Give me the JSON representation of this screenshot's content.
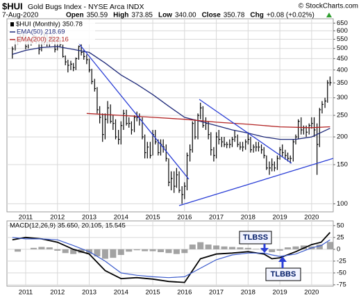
{
  "header": {
    "symbol": "$HUI",
    "name": "Gold Bugs Index - NYSE Arca INDX",
    "credit": "© StockCharts.com",
    "date": "7-Aug-2020",
    "stats": [
      {
        "label": "Open",
        "value": "350.59"
      },
      {
        "label": "High",
        "value": "373.85"
      },
      {
        "label": "Low",
        "value": "340.00"
      },
      {
        "label": "Close",
        "value": "350.78"
      },
      {
        "label": "Chg",
        "value": "+0.08 (+0.02%)"
      }
    ]
  },
  "chart_data": [
    {
      "type": "ohlc",
      "name": "$HUI (Monthly)",
      "color": "#000000",
      "log_scale": true,
      "grid": true,
      "x": [
        2010.58,
        2010.67,
        2010.75,
        2010.83,
        2010.92,
        2011,
        2011.08,
        2011.17,
        2011.25,
        2011.33,
        2011.42,
        2011.5,
        2011.58,
        2011.67,
        2011.75,
        2011.83,
        2011.92,
        2012,
        2012.08,
        2012.17,
        2012.25,
        2012.33,
        2012.42,
        2012.5,
        2012.58,
        2012.67,
        2012.75,
        2012.83,
        2012.92,
        2013,
        2013.08,
        2013.17,
        2013.25,
        2013.33,
        2013.42,
        2013.5,
        2013.58,
        2013.67,
        2013.75,
        2013.83,
        2013.92,
        2014,
        2014.08,
        2014.17,
        2014.25,
        2014.33,
        2014.42,
        2014.5,
        2014.58,
        2014.67,
        2014.75,
        2014.83,
        2014.92,
        2015,
        2015.08,
        2015.17,
        2015.25,
        2015.33,
        2015.42,
        2015.5,
        2015.58,
        2015.67,
        2015.75,
        2015.83,
        2015.92,
        2016,
        2016.08,
        2016.17,
        2016.25,
        2016.33,
        2016.42,
        2016.5,
        2016.58,
        2016.67,
        2016.75,
        2016.83,
        2016.92,
        2017,
        2017.08,
        2017.17,
        2017.25,
        2017.33,
        2017.42,
        2017.5,
        2017.58,
        2017.67,
        2017.75,
        2017.83,
        2017.92,
        2018,
        2018.08,
        2018.17,
        2018.25,
        2018.33,
        2018.42,
        2018.5,
        2018.58,
        2018.67,
        2018.75,
        2018.83,
        2018.92,
        2019,
        2019.08,
        2019.17,
        2019.25,
        2019.33,
        2019.42,
        2019.5,
        2019.58,
        2019.67,
        2019.75,
        2019.83,
        2019.92,
        2020,
        2020.08,
        2020.17,
        2020.25,
        2020.33,
        2020.42,
        2020.5,
        2020.58
      ],
      "high": [
        510,
        545,
        560,
        575,
        580,
        575,
        545,
        555,
        575,
        570,
        535,
        540,
        595,
        580,
        565,
        575,
        555,
        560,
        560,
        520,
        465,
        445,
        440,
        430,
        455,
        515,
        525,
        490,
        470,
        450,
        405,
        365,
        335,
        275,
        255,
        255,
        290,
        280,
        250,
        240,
        215,
        235,
        265,
        265,
        245,
        235,
        250,
        260,
        255,
        245,
        205,
        190,
        190,
        215,
        215,
        195,
        195,
        195,
        185,
        160,
        140,
        140,
        145,
        140,
        120,
        125,
        170,
        185,
        235,
        240,
        255,
        285,
        275,
        245,
        235,
        210,
        180,
        210,
        215,
        200,
        200,
        190,
        195,
        200,
        215,
        205,
        190,
        190,
        195,
        210,
        200,
        185,
        190,
        190,
        185,
        180,
        165,
        155,
        160,
        155,
        165,
        180,
        185,
        175,
        170,
        165,
        195,
        205,
        240,
        245,
        225,
        225,
        230,
        245,
        245,
        230,
        270,
        290,
        300,
        360,
        373.85
      ],
      "low": [
        450,
        490,
        520,
        530,
        545,
        495,
        500,
        515,
        540,
        525,
        470,
        485,
        520,
        510,
        510,
        525,
        480,
        490,
        505,
        455,
        420,
        390,
        400,
        395,
        400,
        445,
        465,
        445,
        425,
        390,
        345,
        320,
        255,
        230,
        190,
        195,
        230,
        230,
        215,
        195,
        185,
        185,
        215,
        225,
        220,
        205,
        210,
        235,
        225,
        195,
        160,
        160,
        160,
        165,
        185,
        165,
        165,
        170,
        155,
        120,
        115,
        112,
        118,
        112,
        100,
        105,
        115,
        155,
        170,
        195,
        195,
        240,
        220,
        215,
        195,
        165,
        155,
        160,
        185,
        180,
        180,
        178,
        178,
        180,
        190,
        180,
        175,
        172,
        175,
        185,
        170,
        170,
        172,
        172,
        168,
        160,
        142,
        135,
        140,
        140,
        142,
        158,
        162,
        158,
        155,
        152,
        155,
        185,
        195,
        205,
        205,
        200,
        205,
        218,
        200,
        135,
        180,
        255,
        270,
        285,
        340
      ],
      "close": [
        497,
        540,
        545,
        560,
        573,
        510,
        540,
        545,
        570,
        535,
        495,
        530,
        575,
        530,
        555,
        550,
        495,
        550,
        520,
        460,
        435,
        420,
        425,
        410,
        450,
        510,
        480,
        460,
        445,
        400,
        355,
        330,
        265,
        245,
        205,
        240,
        270,
        235,
        230,
        200,
        195,
        225,
        255,
        230,
        230,
        215,
        245,
        245,
        240,
        200,
        170,
        180,
        165,
        205,
        190,
        170,
        185,
        180,
        160,
        125,
        130,
        120,
        135,
        115,
        110,
        120,
        165,
        175,
        230,
        200,
        250,
        270,
        225,
        230,
        205,
        175,
        165,
        200,
        195,
        190,
        185,
        185,
        185,
        195,
        200,
        185,
        180,
        180,
        190,
        195,
        175,
        180,
        180,
        180,
        175,
        165,
        145,
        145,
        150,
        145,
        160,
        175,
        170,
        165,
        160,
        160,
        190,
        200,
        235,
        215,
        220,
        210,
        225,
        230,
        215,
        185,
        265,
        280,
        290,
        350,
        350.78
      ],
      "overlays": [
        {
          "name": "EMA(50)",
          "color": "#1f2a7a",
          "x": [
            2010.58,
            2011,
            2011.5,
            2012,
            2012.5,
            2013,
            2013.5,
            2014,
            2014.5,
            2015,
            2015.5,
            2016,
            2016.5,
            2017,
            2017.5,
            2018,
            2018.5,
            2019,
            2019.5,
            2020,
            2020.58
          ],
          "values": [
            470,
            490,
            505,
            510,
            495,
            480,
            430,
            380,
            345,
            310,
            275,
            245,
            235,
            225,
            215,
            208,
            200,
            195,
            195,
            200,
            218.69
          ]
        },
        {
          "name": "EMA(200)",
          "color": "#b22222",
          "x": [
            2012.92,
            2014,
            2015,
            2016,
            2017,
            2018,
            2019,
            2020,
            2020.58
          ],
          "values": [
            255,
            250,
            245,
            240,
            233,
            228,
            222,
            220,
            222.16
          ]
        }
      ],
      "xlim": [
        2010.41,
        2020.68
      ],
      "xticks": [
        2011,
        2012,
        2013,
        2014,
        2015,
        2016,
        2017,
        2018,
        2019,
        2020
      ],
      "ylim": [
        92,
        680
      ],
      "yticks": [
        100,
        150,
        200,
        250,
        300,
        350,
        400,
        450,
        500,
        550,
        600,
        650
      ]
    },
    {
      "type": "macd",
      "label": "MACD(12,26,9)",
      "readout": "35.650, 20.105, 15.545",
      "grid": true,
      "x": [
        2010.58,
        2011,
        2011.5,
        2012,
        2012.5,
        2013,
        2013.5,
        2014,
        2014.5,
        2015,
        2015.5,
        2016,
        2016.5,
        2017,
        2017.5,
        2018,
        2018.5,
        2018.75,
        2019,
        2019.5,
        2020,
        2020.3,
        2020.58
      ],
      "series": [
        {
          "name": "MACD",
          "color": "#000000",
          "values": [
            20,
            25,
            22,
            15,
            0,
            -10,
            -45,
            -62,
            -60,
            -63,
            -68,
            -70,
            -20,
            -10,
            -8,
            -5,
            -10,
            -20,
            -18,
            -5,
            10,
            15,
            35.65
          ]
        },
        {
          "name": "Signal",
          "color": "#3b5bcc",
          "values": [
            25,
            22,
            22,
            20,
            8,
            -5,
            -25,
            -50,
            -55,
            -58,
            -60,
            -58,
            -40,
            -22,
            -12,
            -8,
            -8,
            -12,
            -15,
            -10,
            3,
            8,
            20.105
          ]
        }
      ],
      "histogram": {
        "color": "#8c8c8c",
        "x": [
          2010.75,
          2011,
          2011.25,
          2011.5,
          2011.75,
          2012,
          2012.25,
          2012.5,
          2012.75,
          2013,
          2013.25,
          2013.5,
          2013.75,
          2014,
          2014.25,
          2014.5,
          2014.75,
          2015,
          2015.25,
          2015.5,
          2015.75,
          2016,
          2016.25,
          2016.5,
          2016.75,
          2017,
          2017.25,
          2017.5,
          2017.75,
          2018,
          2018.25,
          2018.5,
          2018.75,
          2019,
          2019.25,
          2019.5,
          2019.75,
          2020,
          2020.25,
          2020.58
        ],
        "values": [
          -5,
          0,
          3,
          5,
          4,
          -3,
          -8,
          -10,
          -8,
          -10,
          -15,
          -20,
          -18,
          -12,
          -5,
          -2,
          -4,
          -4,
          -6,
          -8,
          -10,
          -8,
          10,
          15,
          10,
          8,
          6,
          5,
          4,
          3,
          1,
          -2,
          -6,
          -3,
          4,
          6,
          8,
          6,
          10,
          15.545
        ]
      },
      "annotations": [
        {
          "text": "TLBSS"
        },
        {
          "text": "TLBBS"
        }
      ],
      "xlim": [
        2010.41,
        2020.68
      ],
      "xticks": [
        2011,
        2012,
        2013,
        2014,
        2015,
        2016,
        2017,
        2018,
        2019,
        2020
      ],
      "ylim": [
        -78,
        60
      ],
      "yticks": [
        50,
        25,
        0,
        -25,
        -50,
        -75
      ]
    }
  ]
}
